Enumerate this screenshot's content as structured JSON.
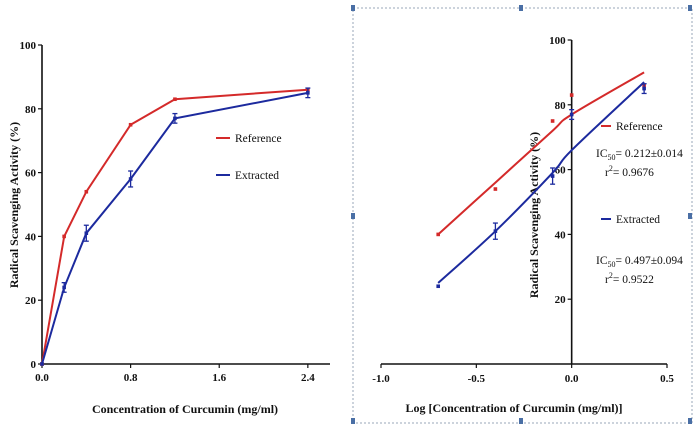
{
  "chart_data": [
    {
      "type": "line",
      "xlabel": "Concentration of Curcumin (mg/ml)",
      "ylabel": "Radical Scavenging Activity (%)",
      "xlim": [
        0,
        2.6
      ],
      "ylim": [
        0,
        100
      ],
      "xticks": [
        "0.0",
        "0.8",
        "1.6",
        "2.4"
      ],
      "yticks": [
        "0",
        "20",
        "40",
        "60",
        "80",
        "100"
      ],
      "x": [
        0,
        0.2,
        0.4,
        0.8,
        1.2,
        2.4
      ],
      "series": [
        {
          "name": "Reference",
          "color": "#d42a2a",
          "values": [
            0,
            40,
            54,
            75,
            83,
            86
          ]
        },
        {
          "name": "Extracted",
          "color": "#1c2a9e",
          "values": [
            0,
            24,
            41,
            58,
            77,
            85
          ],
          "error": [
            0,
            1.5,
            2.5,
            2.5,
            1.5,
            1.5
          ]
        }
      ],
      "legend_position": "right"
    },
    {
      "type": "scatter",
      "xlabel": "Log [Concentration of Curcumin (mg/ml)]",
      "ylabel": "Radical Scavenging Activity (%)",
      "xlim": [
        -1.0,
        0.5
      ],
      "ylim": [
        0,
        100
      ],
      "xticks": [
        "-1.0",
        "-0.5",
        "0.0",
        "0.5"
      ],
      "yticks": [
        "20",
        "40",
        "60",
        "80",
        "100"
      ],
      "x": [
        -0.7,
        -0.4,
        -0.1,
        0,
        0.38
      ],
      "series": [
        {
          "name": "Reference",
          "color": "#d42a2a",
          "values": [
            40,
            54,
            75,
            83,
            86
          ],
          "fit": [
            [
              -0.7,
              40
            ],
            [
              -0.4,
              56
            ],
            [
              -0.1,
              72
            ],
            [
              0.0,
              77
            ],
            [
              0.38,
              90
            ]
          ],
          "ic50": "0.212±0.014",
          "r2": "= 0.9676"
        },
        {
          "name": "Extracted",
          "color": "#1c2a9e",
          "values": [
            24,
            41,
            58,
            77,
            85
          ],
          "error": [
            0,
            2.5,
            2.5,
            1.5,
            1.5
          ],
          "fit": [
            [
              -0.7,
              25
            ],
            [
              -0.4,
              41
            ],
            [
              -0.1,
              59
            ],
            [
              0.0,
              66
            ],
            [
              0.38,
              87
            ]
          ],
          "ic50": "0.497±0.094",
          "r2": "= 0.9522"
        }
      ],
      "legend_position": "right"
    }
  ]
}
